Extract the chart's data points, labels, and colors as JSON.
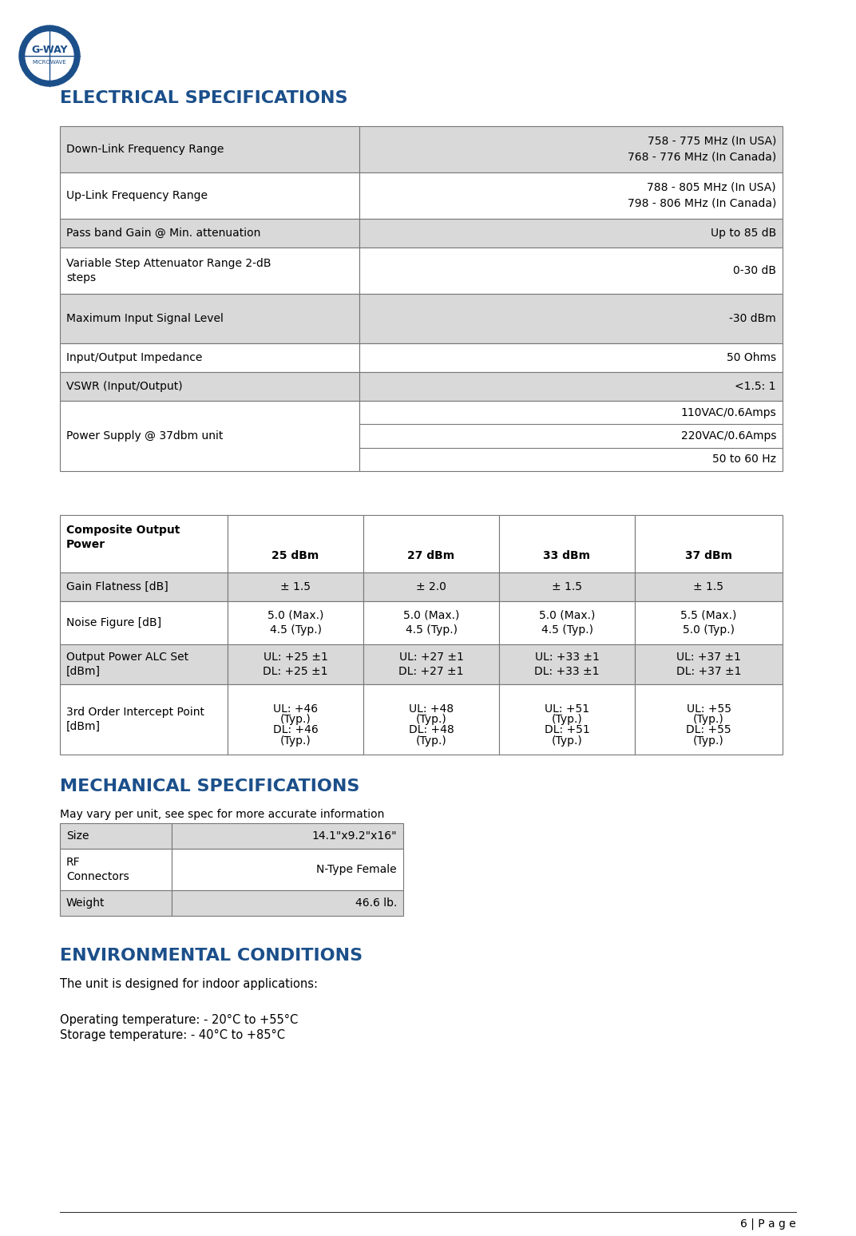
{
  "page_bg": "#ffffff",
  "header_color": "#1B4F8A",
  "table_border_color": "#777777",
  "cell_bg_light": "#D9D9D9",
  "cell_bg_white": "#ffffff",
  "text_color": "#000000",
  "section1_title": "ELECTRICAL SPECIFICATIONS",
  "section2_title": "MECHANICAL SPECIFICATIONS",
  "section3_title": "ENVIRONMENTAL CONDITIONS",
  "elec_table": {
    "rows": [
      {
        "label": "Down-Link Frequency Range",
        "value": "758 - 775 MHz (In USA)\n768 - 776 MHz (In Canada)",
        "label_bg": "#D9D9D9",
        "value_bg": "#D9D9D9"
      },
      {
        "label": "Up-Link Frequency Range",
        "value": "788 - 805 MHz (In USA)\n798 - 806 MHz (In Canada)",
        "label_bg": "#ffffff",
        "value_bg": "#ffffff"
      },
      {
        "label": "Pass band Gain @ Min. attenuation",
        "value": "Up to 85 dB",
        "label_bg": "#D9D9D9",
        "value_bg": "#D9D9D9"
      },
      {
        "label": "Variable Step Attenuator Range 2-dB\nsteps",
        "value": "0-30 dB",
        "label_bg": "#ffffff",
        "value_bg": "#ffffff"
      },
      {
        "label": "Maximum Input Signal Level",
        "value": "-30 dBm",
        "label_bg": "#D9D9D9",
        "value_bg": "#D9D9D9"
      },
      {
        "label": "Input/Output Impedance",
        "value": "50 Ohms",
        "label_bg": "#ffffff",
        "value_bg": "#ffffff"
      },
      {
        "label": "VSWR (Input/Output)",
        "value": "<1.5: 1",
        "label_bg": "#D9D9D9",
        "value_bg": "#D9D9D9"
      },
      {
        "label": "Power Supply @ 37dbm unit",
        "value": "110VAC/0.6Amps\n220VAC/0.6Amps\n50 to 60 Hz",
        "label_bg": "#ffffff",
        "value_bg": "#ffffff"
      }
    ]
  },
  "perf_table": {
    "header": [
      "Composite Output\nPower",
      "25 dBm",
      "27 dBm",
      "33 dBm",
      "37 dBm"
    ],
    "rows": [
      {
        "label": "Gain Flatness [dB]",
        "values": [
          "± 1.5",
          "± 2.0",
          "± 1.5",
          "± 1.5"
        ],
        "label_bg": "#D9D9D9",
        "value_bg": "#D9D9D9"
      },
      {
        "label": "Noise Figure [dB]",
        "values": [
          "5.0 (Max.)\n4.5 (Typ.)",
          "5.0 (Max.)\n4.5 (Typ.)",
          "5.0 (Max.)\n4.5 (Typ.)",
          "5.5 (Max.)\n5.0 (Typ.)"
        ],
        "label_bg": "#ffffff",
        "value_bg": "#ffffff"
      },
      {
        "label": "Output Power ALC Set\n[dBm]",
        "values": [
          "UL: +25 ±1\nDL: +25 ±1",
          "UL: +27 ±1\nDL: +27 ±1",
          "UL: +33 ±1\nDL: +33 ±1",
          "UL: +37 ±1\nDL: +37 ±1"
        ],
        "label_bg": "#D9D9D9",
        "value_bg": "#D9D9D9"
      },
      {
        "label": "3rd Order Intercept Point\n[dBm]",
        "values": [
          "UL: +46\n(Typ.)\nDL: +46\n(Typ.)",
          "UL: +48\n(Typ.)\nDL: +48\n(Typ.)",
          "UL: +51\n(Typ.)\nDL: +51\n(Typ.)",
          "UL: +55\n(Typ.)\nDL: +55\n(Typ.)"
        ],
        "label_bg": "#ffffff",
        "value_bg": "#ffffff"
      }
    ]
  },
  "mech_table": {
    "rows": [
      {
        "label": "Size",
        "value": "14.1\"x9.2\"x16\"",
        "label_bg": "#D9D9D9",
        "value_bg": "#D9D9D9"
      },
      {
        "label": "RF\nConnectors",
        "value": "N-Type Female",
        "label_bg": "#ffffff",
        "value_bg": "#ffffff"
      },
      {
        "label": "Weight",
        "value": "46.6 lb.",
        "label_bg": "#D9D9D9",
        "value_bg": "#D9D9D9"
      }
    ]
  },
  "mech_note": "May vary per unit, see spec for more accurate information",
  "env_text1": "The unit is designed for indoor applications:",
  "env_text2": "Operating temperature: - 20°C to +55°C",
  "env_text3": "Storage temperature: - 40°C to +85°C",
  "page_num": "6 | P a g e"
}
